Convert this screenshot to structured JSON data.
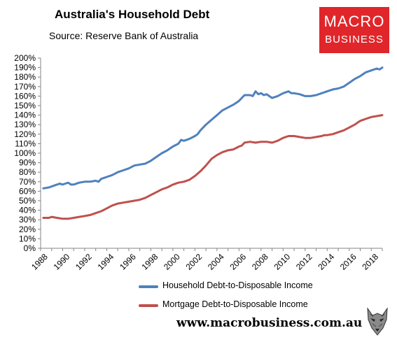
{
  "header": {
    "title": "Australia's Household Debt",
    "subtitle": "Source: Reserve Bank of Australia"
  },
  "logo": {
    "line1": "MACRO",
    "line2": "BUSINESS",
    "bg_color": "#e0262a"
  },
  "footer": {
    "website": "www.macrobusiness.com.au",
    "mascot_icon": "wolf-icon"
  },
  "chart_data": {
    "type": "line",
    "title": "Australia's Household Debt",
    "subtitle": "Source: Reserve Bank of Australia",
    "xlabel": "",
    "ylabel": "",
    "xlim": [
      1988,
      2019
    ],
    "ylim": [
      0,
      200
    ],
    "y_ticks": [
      "0%",
      "10%",
      "20%",
      "30%",
      "40%",
      "50%",
      "60%",
      "70%",
      "80%",
      "90%",
      "100%",
      "110%",
      "120%",
      "130%",
      "140%",
      "150%",
      "160%",
      "170%",
      "180%",
      "190%",
      "200%"
    ],
    "x_ticks": [
      "1988",
      "1990",
      "1992",
      "1994",
      "1996",
      "1998",
      "2000",
      "2002",
      "2004",
      "2006",
      "2008",
      "2010",
      "2012",
      "2014",
      "2016",
      "2018"
    ],
    "grid": false,
    "legend_position": "bottom",
    "series": [
      {
        "name": "Household Debt-to-Disposable Income",
        "color": "#4f81bd",
        "points": [
          [
            1988.25,
            63
          ],
          [
            1988.75,
            64
          ],
          [
            1989.25,
            66
          ],
          [
            1989.75,
            68
          ],
          [
            1990.0,
            67
          ],
          [
            1990.25,
            68
          ],
          [
            1990.5,
            69
          ],
          [
            1990.75,
            67
          ],
          [
            1991.0,
            67
          ],
          [
            1991.5,
            69
          ],
          [
            1992.0,
            70
          ],
          [
            1992.5,
            70
          ],
          [
            1993.0,
            71
          ],
          [
            1993.25,
            70
          ],
          [
            1993.5,
            73
          ],
          [
            1994.0,
            75
          ],
          [
            1994.5,
            77
          ],
          [
            1995.0,
            80
          ],
          [
            1995.5,
            82
          ],
          [
            1996.0,
            84
          ],
          [
            1996.5,
            87
          ],
          [
            1997.0,
            88
          ],
          [
            1997.5,
            89
          ],
          [
            1998.0,
            92
          ],
          [
            1998.5,
            96
          ],
          [
            1999.0,
            100
          ],
          [
            1999.5,
            103
          ],
          [
            2000.0,
            107
          ],
          [
            2000.5,
            110
          ],
          [
            2000.75,
            114
          ],
          [
            2001.0,
            113
          ],
          [
            2001.5,
            115
          ],
          [
            2002.0,
            118
          ],
          [
            2002.25,
            120
          ],
          [
            2002.5,
            124
          ],
          [
            2003.0,
            130
          ],
          [
            2003.5,
            135
          ],
          [
            2004.0,
            140
          ],
          [
            2004.5,
            145
          ],
          [
            2005.0,
            148
          ],
          [
            2005.5,
            151
          ],
          [
            2006.0,
            155
          ],
          [
            2006.25,
            158
          ],
          [
            2006.5,
            161
          ],
          [
            2007.0,
            161
          ],
          [
            2007.25,
            160
          ],
          [
            2007.5,
            165
          ],
          [
            2007.75,
            162
          ],
          [
            2008.0,
            163
          ],
          [
            2008.25,
            161
          ],
          [
            2008.5,
            162
          ],
          [
            2009.0,
            158
          ],
          [
            2009.5,
            160
          ],
          [
            2010.0,
            163
          ],
          [
            2010.5,
            165
          ],
          [
            2010.75,
            163
          ],
          [
            2011.0,
            163
          ],
          [
            2011.5,
            162
          ],
          [
            2012.0,
            160
          ],
          [
            2012.5,
            160
          ],
          [
            2013.0,
            161
          ],
          [
            2013.5,
            163
          ],
          [
            2014.0,
            165
          ],
          [
            2014.5,
            167
          ],
          [
            2015.0,
            168
          ],
          [
            2015.5,
            170
          ],
          [
            2016.0,
            174
          ],
          [
            2016.5,
            178
          ],
          [
            2017.0,
            181
          ],
          [
            2017.5,
            185
          ],
          [
            2018.0,
            187
          ],
          [
            2018.5,
            189
          ],
          [
            2018.75,
            188
          ],
          [
            2019.0,
            190
          ]
        ]
      },
      {
        "name": "Mortgage Debt-to-Disposable Income",
        "color": "#c0504d",
        "points": [
          [
            1988.25,
            32
          ],
          [
            1988.75,
            32
          ],
          [
            1989.0,
            33
          ],
          [
            1989.5,
            32
          ],
          [
            1990.0,
            31
          ],
          [
            1990.5,
            31
          ],
          [
            1991.0,
            32
          ],
          [
            1991.5,
            33
          ],
          [
            1992.0,
            34
          ],
          [
            1992.5,
            35
          ],
          [
            1993.0,
            37
          ],
          [
            1993.5,
            39
          ],
          [
            1994.0,
            42
          ],
          [
            1994.5,
            45
          ],
          [
            1995.0,
            47
          ],
          [
            1995.5,
            48
          ],
          [
            1996.0,
            49
          ],
          [
            1996.5,
            50
          ],
          [
            1997.0,
            51
          ],
          [
            1997.5,
            53
          ],
          [
            1998.0,
            56
          ],
          [
            1998.5,
            59
          ],
          [
            1999.0,
            62
          ],
          [
            1999.5,
            64
          ],
          [
            2000.0,
            67
          ],
          [
            2000.5,
            69
          ],
          [
            2001.0,
            70
          ],
          [
            2001.5,
            72
          ],
          [
            2002.0,
            76
          ],
          [
            2002.5,
            81
          ],
          [
            2003.0,
            87
          ],
          [
            2003.5,
            94
          ],
          [
            2004.0,
            98
          ],
          [
            2004.5,
            101
          ],
          [
            2005.0,
            103
          ],
          [
            2005.5,
            104
          ],
          [
            2006.0,
            107
          ],
          [
            2006.25,
            108
          ],
          [
            2006.5,
            111
          ],
          [
            2007.0,
            112
          ],
          [
            2007.5,
            111
          ],
          [
            2008.0,
            112
          ],
          [
            2008.5,
            112
          ],
          [
            2009.0,
            111
          ],
          [
            2009.5,
            113
          ],
          [
            2010.0,
            116
          ],
          [
            2010.5,
            118
          ],
          [
            2011.0,
            118
          ],
          [
            2011.5,
            117
          ],
          [
            2012.0,
            116
          ],
          [
            2012.5,
            116
          ],
          [
            2013.0,
            117
          ],
          [
            2013.5,
            118
          ],
          [
            2013.75,
            119
          ],
          [
            2014.0,
            119
          ],
          [
            2014.5,
            120
          ],
          [
            2015.0,
            122
          ],
          [
            2015.5,
            124
          ],
          [
            2016.0,
            127
          ],
          [
            2016.5,
            130
          ],
          [
            2017.0,
            134
          ],
          [
            2017.5,
            136
          ],
          [
            2018.0,
            138
          ],
          [
            2018.5,
            139
          ],
          [
            2019.0,
            140
          ]
        ]
      }
    ]
  }
}
